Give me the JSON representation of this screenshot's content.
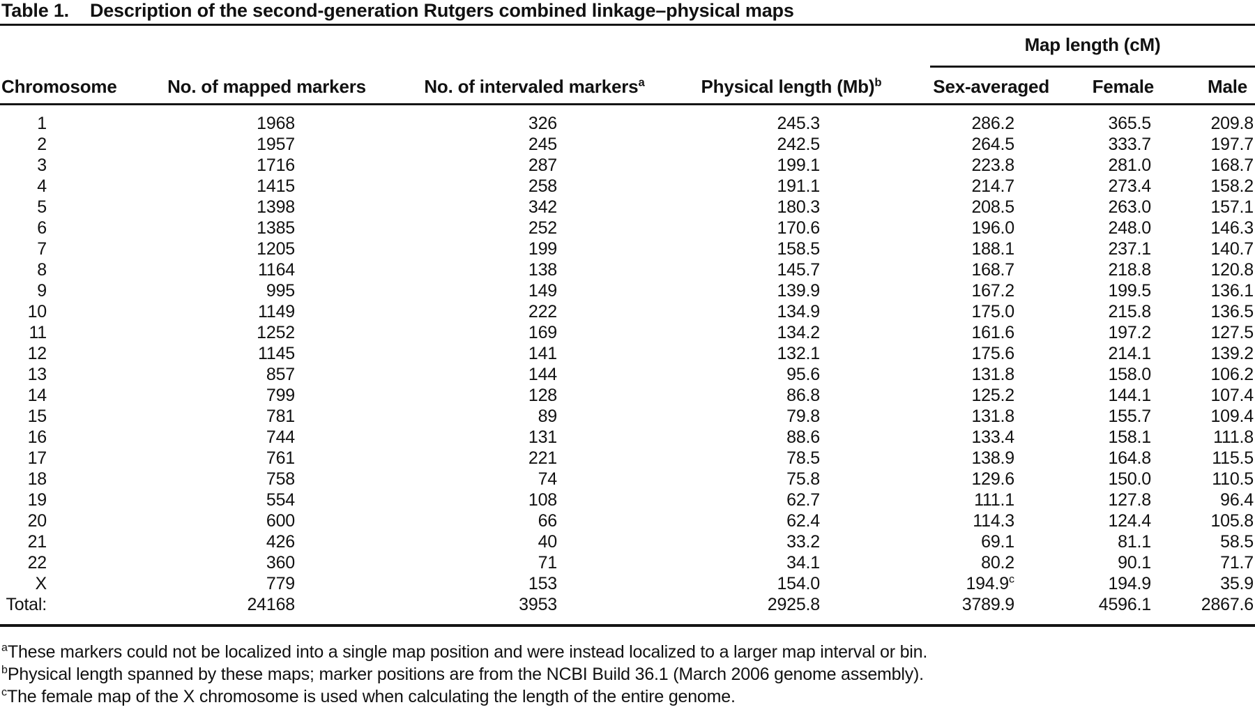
{
  "title": {
    "label": "Table 1.",
    "text": "Description of the second-generation Rutgers combined linkage–physical maps"
  },
  "table": {
    "spanner": "Map length (cM)",
    "columns": [
      {
        "key": "chromosome",
        "label": "Chromosome",
        "sup": ""
      },
      {
        "key": "mapped",
        "label": "No. of mapped markers",
        "sup": ""
      },
      {
        "key": "intervaled",
        "label": "No. of intervaled markers",
        "sup": "a"
      },
      {
        "key": "physical",
        "label": "Physical length (Mb)",
        "sup": "b"
      },
      {
        "key": "sex_averaged",
        "label": "Sex-averaged",
        "sup": ""
      },
      {
        "key": "female",
        "label": "Female",
        "sup": ""
      },
      {
        "key": "male",
        "label": "Male",
        "sup": ""
      }
    ],
    "rows": [
      {
        "chromosome": "1",
        "mapped": "1968",
        "intervaled": "326",
        "physical": "245.3",
        "sex_averaged": "286.2",
        "female": "365.5",
        "male": "209.8"
      },
      {
        "chromosome": "2",
        "mapped": "1957",
        "intervaled": "245",
        "physical": "242.5",
        "sex_averaged": "264.5",
        "female": "333.7",
        "male": "197.7"
      },
      {
        "chromosome": "3",
        "mapped": "1716",
        "intervaled": "287",
        "physical": "199.1",
        "sex_averaged": "223.8",
        "female": "281.0",
        "male": "168.7"
      },
      {
        "chromosome": "4",
        "mapped": "1415",
        "intervaled": "258",
        "physical": "191.1",
        "sex_averaged": "214.7",
        "female": "273.4",
        "male": "158.2"
      },
      {
        "chromosome": "5",
        "mapped": "1398",
        "intervaled": "342",
        "physical": "180.3",
        "sex_averaged": "208.5",
        "female": "263.0",
        "male": "157.1"
      },
      {
        "chromosome": "6",
        "mapped": "1385",
        "intervaled": "252",
        "physical": "170.6",
        "sex_averaged": "196.0",
        "female": "248.0",
        "male": "146.3"
      },
      {
        "chromosome": "7",
        "mapped": "1205",
        "intervaled": "199",
        "physical": "158.5",
        "sex_averaged": "188.1",
        "female": "237.1",
        "male": "140.7"
      },
      {
        "chromosome": "8",
        "mapped": "1164",
        "intervaled": "138",
        "physical": "145.7",
        "sex_averaged": "168.7",
        "female": "218.8",
        "male": "120.8"
      },
      {
        "chromosome": "9",
        "mapped": "995",
        "intervaled": "149",
        "physical": "139.9",
        "sex_averaged": "167.2",
        "female": "199.5",
        "male": "136.1"
      },
      {
        "chromosome": "10",
        "mapped": "1149",
        "intervaled": "222",
        "physical": "134.9",
        "sex_averaged": "175.0",
        "female": "215.8",
        "male": "136.5"
      },
      {
        "chromosome": "11",
        "mapped": "1252",
        "intervaled": "169",
        "physical": "134.2",
        "sex_averaged": "161.6",
        "female": "197.2",
        "male": "127.5"
      },
      {
        "chromosome": "12",
        "mapped": "1145",
        "intervaled": "141",
        "physical": "132.1",
        "sex_averaged": "175.6",
        "female": "214.1",
        "male": "139.2"
      },
      {
        "chromosome": "13",
        "mapped": "857",
        "intervaled": "144",
        "physical": "95.6",
        "sex_averaged": "131.8",
        "female": "158.0",
        "male": "106.2"
      },
      {
        "chromosome": "14",
        "mapped": "799",
        "intervaled": "128",
        "physical": "86.8",
        "sex_averaged": "125.2",
        "female": "144.1",
        "male": "107.4"
      },
      {
        "chromosome": "15",
        "mapped": "781",
        "intervaled": "89",
        "physical": "79.8",
        "sex_averaged": "131.8",
        "female": "155.7",
        "male": "109.4"
      },
      {
        "chromosome": "16",
        "mapped": "744",
        "intervaled": "131",
        "physical": "88.6",
        "sex_averaged": "133.4",
        "female": "158.1",
        "male": "111.8"
      },
      {
        "chromosome": "17",
        "mapped": "761",
        "intervaled": "221",
        "physical": "78.5",
        "sex_averaged": "138.9",
        "female": "164.8",
        "male": "115.5"
      },
      {
        "chromosome": "18",
        "mapped": "758",
        "intervaled": "74",
        "physical": "75.8",
        "sex_averaged": "129.6",
        "female": "150.0",
        "male": "110.5"
      },
      {
        "chromosome": "19",
        "mapped": "554",
        "intervaled": "108",
        "physical": "62.7",
        "sex_averaged": "111.1",
        "female": "127.8",
        "male": "96.4"
      },
      {
        "chromosome": "20",
        "mapped": "600",
        "intervaled": "66",
        "physical": "62.4",
        "sex_averaged": "114.3",
        "female": "124.4",
        "male": "105.8"
      },
      {
        "chromosome": "21",
        "mapped": "426",
        "intervaled": "40",
        "physical": "33.2",
        "sex_averaged": "69.1",
        "female": "81.1",
        "male": "58.5"
      },
      {
        "chromosome": "22",
        "mapped": "360",
        "intervaled": "71",
        "physical": "34.1",
        "sex_averaged": "80.2",
        "female": "90.1",
        "male": "71.7"
      },
      {
        "chromosome": "X",
        "mapped": "779",
        "intervaled": "153",
        "physical": "154.0",
        "sex_averaged": "194.9",
        "sex_averaged_sup": "c",
        "female": "194.9",
        "male": "35.9"
      },
      {
        "chromosome": "Total:",
        "mapped": "24168",
        "intervaled": "3953",
        "physical": "2925.8",
        "sex_averaged": "3789.9",
        "female": "4596.1",
        "male": "2867.6"
      }
    ],
    "footnotes": [
      {
        "marker": "a",
        "text": "These markers could not be localized into a single map position and were instead localized to a larger map interval or bin."
      },
      {
        "marker": "b",
        "text": "Physical length spanned by these maps; marker positions are from the NCBI Build 36.1 (March 2006 genome assembly)."
      },
      {
        "marker": "c",
        "text": "The female map of the X chromosome is used when calculating the length of the entire genome."
      }
    ]
  }
}
